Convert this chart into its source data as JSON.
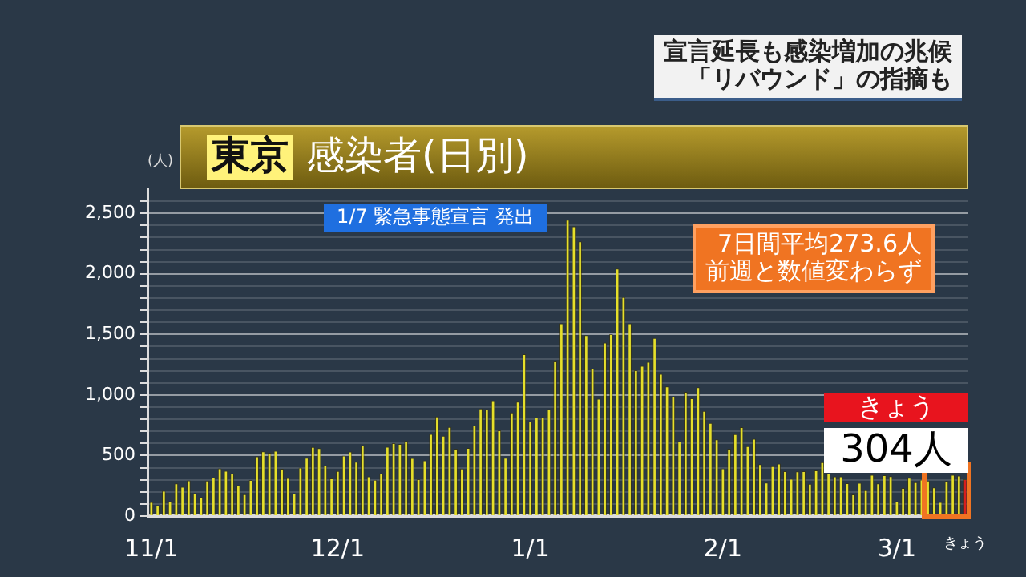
{
  "chart_data": {
    "type": "bar",
    "title": "東京 感染者(日別)",
    "subtitle": "宣言延長も感染増加の兆候「リバウンド」の指摘も",
    "ylabel": "(人)",
    "categories": [
      "11/1",
      null,
      null,
      null,
      null,
      null,
      null,
      null,
      null,
      null,
      null,
      null,
      null,
      null,
      null,
      null,
      null,
      null,
      null,
      null,
      null,
      null,
      null,
      null,
      null,
      null,
      null,
      null,
      null,
      null,
      "12/1",
      null,
      null,
      null,
      null,
      null,
      null,
      null,
      null,
      null,
      null,
      null,
      null,
      null,
      null,
      null,
      null,
      null,
      null,
      null,
      null,
      null,
      null,
      null,
      null,
      null,
      null,
      null,
      null,
      null,
      null,
      "1/1",
      null,
      null,
      null,
      null,
      null,
      null,
      null,
      null,
      null,
      null,
      null,
      null,
      null,
      null,
      null,
      null,
      null,
      null,
      null,
      null,
      null,
      null,
      null,
      null,
      null,
      null,
      null,
      null,
      null,
      null,
      "2/1",
      null,
      null,
      null,
      null,
      null,
      null,
      null,
      null,
      null,
      null,
      null,
      null,
      null,
      null,
      null,
      null,
      null,
      null,
      null,
      null,
      null,
      null,
      null,
      null,
      null,
      null,
      null,
      "3/1",
      null,
      null,
      null,
      null,
      null,
      null,
      null,
      null,
      null,
      null,
      "きょう"
    ],
    "values": [
      116,
      87,
      209,
      122,
      269,
      242,
      294,
      189,
      157,
      293,
      317,
      393,
      374,
      352,
      255,
      180,
      298,
      493,
      534,
      522,
      539,
      391,
      314,
      186,
      401,
      481,
      570,
      561,
      418,
      311,
      372,
      500,
      533,
      449,
      584,
      327,
      299,
      352,
      572,
      602,
      595,
      621,
      480,
      305,
      460,
      678,
      822,
      664,
      736,
      556,
      392,
      563,
      748,
      888,
      884,
      949,
      708,
      481,
      856,
      944,
      1337,
      783,
      814,
      816,
      884,
      1278,
      1591,
      2447,
      2392,
      2268,
      1494,
      1219,
      970,
      1433,
      1502,
      2044,
      1809,
      1592,
      1204,
      1240,
      1274,
      1471,
      1175,
      1070,
      986,
      618,
      1026,
      973,
      1064,
      868,
      769,
      633,
      393,
      556,
      676,
      734,
      577,
      639,
      429,
      276,
      412,
      434,
      370,
      307,
      369,
      371,
      266,
      378,
      445,
      353,
      327,
      327,
      272,
      178,
      275,
      213,
      340,
      270,
      337,
      329,
      121,
      232,
      316,
      279,
      301,
      293,
      237,
      116,
      290,
      340,
      335,
      304
    ],
    "colors": [
      "#e6df2a",
      "#e6df2a",
      "#e6df2a",
      "#e6df2a",
      "#e6df2a",
      "#e6df2a",
      "#e6df2a",
      "#e6df2a",
      "#e6df2a",
      "#e6df2a",
      "#e6df2a",
      "#e6df2a",
      "#e6df2a",
      "#e6df2a",
      "#e6df2a",
      "#e6df2a",
      "#e6df2a",
      "#e6df2a",
      "#e6df2a",
      "#e6df2a",
      "#e6df2a",
      "#e6df2a",
      "#e6df2a",
      "#e6df2a",
      "#e6df2a",
      "#e6df2a",
      "#e6df2a",
      "#e6df2a",
      "#e6df2a",
      "#e6df2a",
      "#e6df2a",
      "#e6df2a",
      "#e6df2a",
      "#e6df2a",
      "#e6df2a",
      "#e6df2a",
      "#e6df2a",
      "#e6df2a",
      "#e6df2a",
      "#e6df2a",
      "#e6df2a",
      "#e6df2a",
      "#e6df2a",
      "#e6df2a",
      "#e6df2a",
      "#e6df2a",
      "#e6df2a",
      "#e6df2a",
      "#e6df2a",
      "#e6df2a",
      "#e6df2a",
      "#e6df2a",
      "#e6df2a",
      "#e6df2a",
      "#e6df2a",
      "#e6df2a",
      "#e6df2a",
      "#e6df2a",
      "#e6df2a",
      "#e6df2a",
      "#e6df2a",
      "#e6df2a",
      "#e6df2a",
      "#e6df2a",
      "#e6df2a",
      "#e6df2a",
      "#e6df2a",
      "#e6df2a",
      "#e6df2a",
      "#e6df2a",
      "#e6df2a",
      "#e6df2a",
      "#e6df2a",
      "#e6df2a",
      "#e6df2a",
      "#e6df2a",
      "#e6df2a",
      "#e6df2a",
      "#e6df2a",
      "#e6df2a",
      "#e6df2a",
      "#e6df2a",
      "#e6df2a",
      "#e6df2a",
      "#e6df2a",
      "#e6df2a",
      "#e6df2a",
      "#e6df2a",
      "#e6df2a",
      "#e6df2a",
      "#e6df2a",
      "#e6df2a",
      "#e6df2a",
      "#e6df2a",
      "#e6df2a",
      "#e6df2a",
      "#e6df2a",
      "#e6df2a",
      "#e6df2a",
      "#e6df2a",
      "#e6df2a",
      "#e6df2a",
      "#e6df2a",
      "#e6df2a",
      "#e6df2a",
      "#e6df2a",
      "#e6df2a",
      "#e6df2a",
      "#e6df2a",
      "#e6df2a",
      "#e6df2a",
      "#e6df2a",
      "#e6df2a",
      "#e6df2a",
      "#e6df2a",
      "#e6df2a",
      "#e6df2a",
      "#e6df2a",
      "#e6df2a",
      "#e6df2a",
      "#e6df2a",
      "#e6df2a",
      "#e6df2a",
      "#e6df2a",
      "#e6df2a",
      "#e6df2a",
      "#e6df2a",
      "#e6df2a",
      "#e6df2a",
      "#e6df2a",
      "#e6df2a",
      "#d81e1e"
    ],
    "ylim": [
      0,
      2700
    ],
    "yticks": [
      0,
      {
        "value": 100,
        "label": null
      },
      {
        "value": 200,
        "label": null
      },
      {
        "value": 300,
        "label": null
      },
      {
        "value": 400,
        "label": null
      },
      500,
      {
        "value": 600,
        "label": null
      },
      {
        "value": 700,
        "label": null
      },
      {
        "value": 800,
        "label": null
      },
      {
        "value": 900,
        "label": null
      },
      {
        "value": 1000,
        "label": "1,000"
      },
      {
        "value": 1100,
        "label": null
      },
      {
        "value": 1200,
        "label": null
      },
      {
        "value": 1300,
        "label": null
      },
      {
        "value": 1400,
        "label": null
      },
      {
        "value": 1500,
        "label": "1,500"
      },
      {
        "value": 1600,
        "label": null
      },
      {
        "value": 1700,
        "label": null
      },
      {
        "value": 1800,
        "label": null
      },
      {
        "value": 1900,
        "label": null
      },
      {
        "value": 2000,
        "label": "2,000"
      },
      {
        "value": 2100,
        "label": null
      },
      {
        "value": 2200,
        "label": null
      },
      {
        "value": 2300,
        "label": null
      },
      {
        "value": 2400,
        "label": null
      },
      {
        "value": 2500,
        "label": "2,500"
      },
      {
        "value": 2600,
        "label": null
      }
    ],
    "grid": true,
    "annotations": [
      "1/7 緊急事態宣言 発出",
      "7日間平均273.6人",
      "前週と数値変わらず",
      "きょう",
      {
        "text": "304人",
        "x": "きょう",
        "y": 304
      }
    ]
  }
}
